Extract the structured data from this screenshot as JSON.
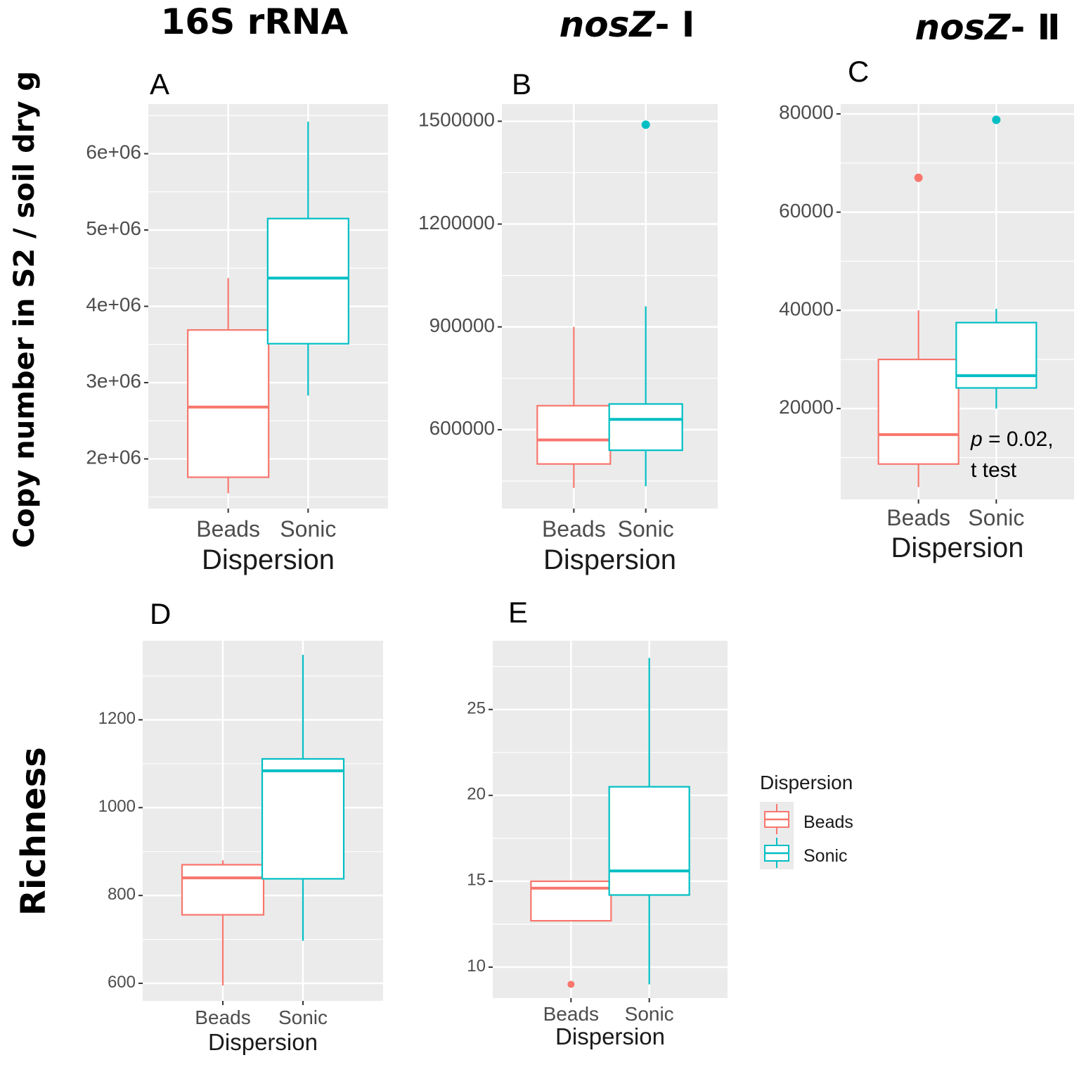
{
  "figure": {
    "column_titles": [
      {
        "text": "16S rRNA"
      },
      {
        "italic": "nosZ",
        "suffix": "- Ⅰ"
      },
      {
        "italic": "nosZ",
        "suffix": "- Ⅱ"
      }
    ],
    "row_titles": {
      "copy_number": "Copy number in S2 / soil dry g",
      "richness": "Richness"
    },
    "annotation": {
      "p_symbol": "p",
      "p_text": " = 0.02,",
      "test": "t test"
    },
    "legend": {
      "title": "Dispersion",
      "items": [
        "Beads",
        "Sonic"
      ]
    },
    "colors": {
      "Beads": "#F8766D",
      "Sonic": "#00BFC4",
      "panel_bg": "#EBEBEB",
      "grid": "#FFFFFF",
      "tick": "#333333"
    }
  },
  "chart_data": [
    {
      "id": "A",
      "type": "boxplot",
      "xlabel": "Dispersion",
      "ylabel": "Copy number in S2 / soil dry g",
      "categories": [
        "Beads",
        "Sonic"
      ],
      "ylim": [
        1350000,
        6650000
      ],
      "yticks": [
        2000000,
        3000000,
        4000000,
        5000000,
        6000000
      ],
      "ytick_labels": [
        "2e+06",
        "3e+06",
        "4e+06",
        "5e+06",
        "6e+06"
      ],
      "boxes": [
        {
          "name": "Beads",
          "min": 1550000,
          "q1": 1760000,
          "median": 2680000,
          "q3": 3690000,
          "max": 4370000,
          "outliers": []
        },
        {
          "name": "Sonic",
          "min": 2830000,
          "q1": 3510000,
          "median": 4370000,
          "q3": 5150000,
          "max": 6420000,
          "outliers": []
        }
      ]
    },
    {
      "id": "B",
      "type": "boxplot",
      "xlabel": "Dispersion",
      "ylabel": "Copy number in S2 / soil dry g",
      "categories": [
        "Beads",
        "Sonic"
      ],
      "ylim": [
        370000,
        1550000
      ],
      "yticks": [
        600000,
        900000,
        1200000,
        1500000
      ],
      "ytick_labels": [
        "600000",
        "900000",
        "1200000",
        "1500000"
      ],
      "boxes": [
        {
          "name": "Beads",
          "min": 430000,
          "q1": 500000,
          "median": 570000,
          "q3": 670000,
          "max": 900000,
          "outliers": []
        },
        {
          "name": "Sonic",
          "min": 435000,
          "q1": 540000,
          "median": 630000,
          "q3": 675000,
          "max": 960000,
          "outliers": [
            1490000
          ]
        }
      ]
    },
    {
      "id": "C",
      "type": "boxplot",
      "xlabel": "Dispersion",
      "ylabel": "Copy number in S2 / soil dry g",
      "categories": [
        "Beads",
        "Sonic"
      ],
      "ylim": [
        1500,
        82000
      ],
      "yticks": [
        20000,
        40000,
        60000,
        80000
      ],
      "ytick_labels": [
        "20000",
        "40000",
        "60000",
        "80000"
      ],
      "boxes": [
        {
          "name": "Beads",
          "min": 4000,
          "q1": 8700,
          "median": 14700,
          "q3": 30000,
          "max": 40000,
          "outliers": [
            67000
          ]
        },
        {
          "name": "Sonic",
          "min": 20000,
          "q1": 24200,
          "median": 26700,
          "q3": 37500,
          "max": 40300,
          "outliers": [
            78800
          ]
        }
      ]
    },
    {
      "id": "D",
      "type": "boxplot",
      "xlabel": "Dispersion",
      "ylabel": "Richness",
      "categories": [
        "Beads",
        "Sonic"
      ],
      "ylim": [
        560,
        1380
      ],
      "yticks": [
        600,
        800,
        1000,
        1200
      ],
      "ytick_labels": [
        "600",
        "800",
        "1000",
        "1200"
      ],
      "boxes": [
        {
          "name": "Beads",
          "min": 595,
          "q1": 756,
          "median": 840,
          "q3": 870,
          "max": 880,
          "outliers": []
        },
        {
          "name": "Sonic",
          "min": 697,
          "q1": 838,
          "median": 1084,
          "q3": 1111,
          "max": 1348,
          "outliers": []
        }
      ]
    },
    {
      "id": "E",
      "type": "boxplot",
      "xlabel": "Dispersion",
      "ylabel": "Richness",
      "categories": [
        "Beads",
        "Sonic"
      ],
      "ylim": [
        8.2,
        29
      ],
      "yticks": [
        10,
        15,
        20,
        25
      ],
      "ytick_labels": [
        "10",
        "15",
        "20",
        "25"
      ],
      "boxes": [
        {
          "name": "Beads",
          "min": 12.7,
          "q1": 12.7,
          "median": 14.6,
          "q3": 15.0,
          "max": 15.0,
          "outliers": [
            9.0
          ]
        },
        {
          "name": "Sonic",
          "min": 9.0,
          "q1": 14.2,
          "median": 15.6,
          "q3": 20.5,
          "max": 28.0,
          "outliers": []
        }
      ]
    }
  ]
}
